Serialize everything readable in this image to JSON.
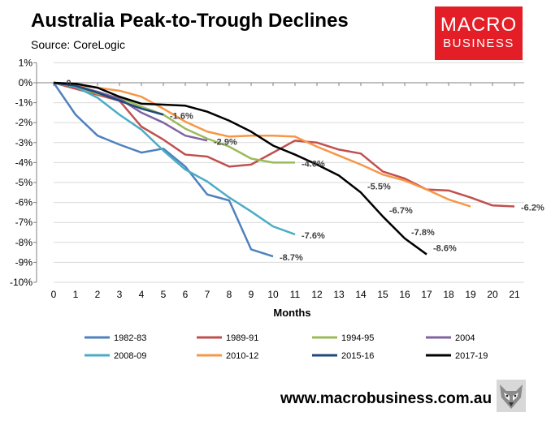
{
  "chart_data": {
    "type": "line",
    "title": "Australia Peak-to-Trough Declines",
    "subtitle": "Source: CoreLogic",
    "xlabel": "Months",
    "ylabel": "",
    "xlim": [
      0,
      21
    ],
    "ylim": [
      -10,
      1
    ],
    "x_ticks": [
      0,
      1,
      2,
      3,
      4,
      5,
      6,
      7,
      8,
      9,
      10,
      11,
      12,
      13,
      14,
      15,
      16,
      17,
      18,
      19,
      20,
      21
    ],
    "y_ticks": [
      1,
      0,
      -1,
      -2,
      -3,
      -4,
      -5,
      -6,
      -7,
      -8,
      -9,
      -10
    ],
    "y_tick_labels": [
      "1%",
      "0%",
      "-1%",
      "-2%",
      "-3%",
      "-4%",
      "-5%",
      "-6%",
      "-7%",
      "-8%",
      "-9%",
      "-10%"
    ],
    "grid": "horizontal",
    "legend_position": "bottom",
    "series": [
      {
        "name": "1982-83",
        "color": "#4f81bd",
        "values": [
          0,
          -1.6,
          -2.65,
          -3.1,
          -3.5,
          -3.3,
          -4.2,
          -5.6,
          -5.9,
          -8.35,
          -8.7
        ],
        "end_label": "-8.7%"
      },
      {
        "name": "1989-91",
        "color": "#c0504d",
        "values": [
          0,
          -0.3,
          -0.6,
          -0.9,
          -2.2,
          -2.85,
          -3.6,
          -3.7,
          -4.2,
          -4.1,
          -3.5,
          -2.9,
          -3.0,
          -3.35,
          -3.55,
          -4.45,
          -4.8,
          -5.35,
          -5.4,
          -5.75,
          -6.15,
          -6.2
        ],
        "end_label": "-6.2%"
      },
      {
        "name": "1994-95",
        "color": "#9bbb59",
        "values": [
          0,
          -0.2,
          -0.55,
          -0.75,
          -1.2,
          -1.6,
          -2.3,
          -2.8,
          -3.2,
          -3.8,
          -4.0,
          -4.0
        ],
        "end_label": "-4.0%"
      },
      {
        "name": "2004",
        "color": "#8064a2",
        "values": [
          0,
          -0.15,
          -0.45,
          -0.8,
          -1.5,
          -2.0,
          -2.65,
          -2.9
        ],
        "end_label": "-2.9%"
      },
      {
        "name": "2008-09",
        "color": "#4bacc6",
        "values": [
          0,
          -0.2,
          -0.75,
          -1.6,
          -2.35,
          -3.4,
          -4.35,
          -4.95,
          -5.75,
          -6.45,
          -7.2,
          -7.6
        ],
        "end_label": "-7.6%"
      },
      {
        "name": "2010-12",
        "color": "#f79646",
        "values": [
          0,
          -0.1,
          -0.25,
          -0.4,
          -0.7,
          -1.3,
          -1.95,
          -2.45,
          -2.7,
          -2.65,
          -2.65,
          -2.7,
          -3.2,
          -3.65,
          -4.1,
          -4.6,
          -4.9,
          -5.35,
          -5.85,
          -6.2
        ],
        "end_label": null
      },
      {
        "name": "2015-16",
        "color": "#1f497d",
        "values": [
          0,
          -0.15,
          -0.5,
          -0.9,
          -1.3,
          -1.6
        ],
        "end_label": "-1.6%"
      },
      {
        "name": "2017-19",
        "color": "#000000",
        "values": [
          0,
          -0.05,
          -0.25,
          -0.7,
          -1.05,
          -1.1,
          -1.15,
          -1.45,
          -1.9,
          -2.45,
          -3.15,
          -3.6,
          -4.1,
          -4.65,
          -5.5,
          -6.7,
          -7.8,
          -8.6
        ],
        "end_label": null
      }
    ],
    "annotations": [
      {
        "text": "0",
        "x": 0.5,
        "y": 0
      },
      {
        "text": "-5.5%",
        "x": 14,
        "y": -5.5
      },
      {
        "text": "-6.7%",
        "x": 15,
        "y": -6.7
      },
      {
        "text": "-7.8%",
        "x": 16,
        "y": -7.8
      },
      {
        "text": "-8.6%",
        "x": 17,
        "y": -8.6
      }
    ]
  },
  "brand": {
    "logo_line1": "MACRO",
    "logo_line2": "BUSINESS",
    "logo_color": "#e41e26",
    "url": "www.macrobusiness.com.au",
    "mascot_icon": "wolf-icon"
  }
}
